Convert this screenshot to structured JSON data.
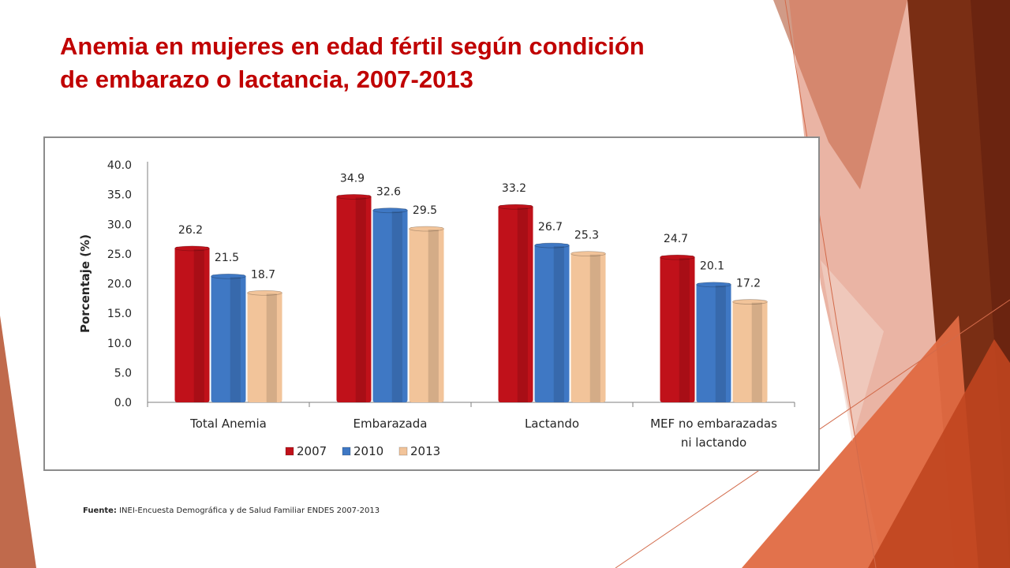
{
  "slide": {
    "title_lines": [
      "Anemia en mujeres en edad fértil  según condición",
      "de embarazo o lactancia, 2007-2013"
    ],
    "source_label": "Fuente:",
    "source_text": "INEI-Encuesta Demográfica y de Salud Familiar ENDES 2007-2013",
    "colors": {
      "title": "#c00000",
      "accent_dark": "#7b2a14",
      "accent_orange": "#e0603a"
    }
  },
  "chart_data": {
    "type": "bar",
    "title": "",
    "xlabel": "",
    "ylabel": "Porcentaje (%)",
    "ylim": [
      0,
      40
    ],
    "yticks": [
      "40.0",
      "35.0",
      "30.0",
      "25.0",
      "20.0",
      "15.0",
      "10.0",
      "5.0",
      "0.0"
    ],
    "categories": [
      [
        "Total Anemia"
      ],
      [
        "Embarazada"
      ],
      [
        "Lactando"
      ],
      [
        "MEF no embarazadas",
        "ni lactando"
      ]
    ],
    "series": [
      {
        "name": "2007",
        "color": "#c0111a",
        "values": [
          26.2,
          34.9,
          33.2,
          24.7
        ],
        "labels": [
          "26.2",
          "34.9",
          "33.2",
          "24.7"
        ]
      },
      {
        "name": "2010",
        "color": "#3f78c4",
        "values": [
          21.5,
          32.6,
          26.7,
          20.1
        ],
        "labels": [
          "21.5",
          "32.6",
          "26.7",
          "20.1"
        ]
      },
      {
        "name": "2013",
        "color": "#f2c49a",
        "values": [
          18.7,
          29.5,
          25.3,
          17.2
        ],
        "labels": [
          "18.7",
          "29.5",
          "25.3",
          "17.2"
        ]
      }
    ],
    "legend_position": "bottom",
    "grid": false
  }
}
